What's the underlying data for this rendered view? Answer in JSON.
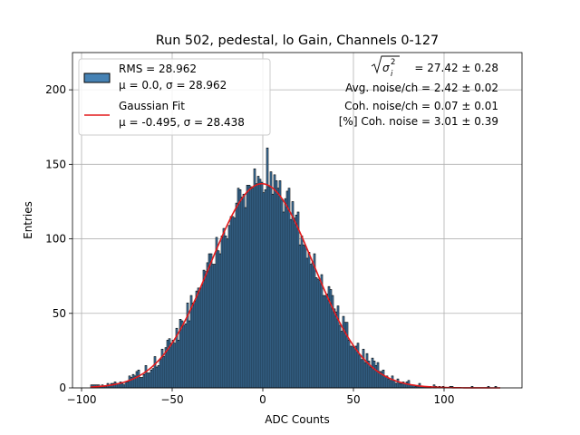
{
  "chart_data": {
    "type": "bar",
    "title": "Run 502, pedestal, lo Gain, Channels 0-127",
    "xlabel": "ADC Counts",
    "ylabel": "Entries",
    "xlim": [
      -105,
      143
    ],
    "ylim": [
      0,
      225
    ],
    "xticks": [
      -100,
      -50,
      0,
      50,
      100
    ],
    "xtick_labels": [
      "−100",
      "−50",
      "0",
      "50",
      "100"
    ],
    "yticks": [
      0,
      50,
      100,
      150,
      200
    ],
    "ytick_labels": [
      "0",
      "50",
      "100",
      "150",
      "200"
    ],
    "grid": true,
    "legend_position": "upper left",
    "colors": {
      "histogram": "#4682b4",
      "edge": "#000000",
      "fit": "#e41a1c"
    },
    "series": [
      {
        "name": "RMS = 28.962",
        "name_line2": "μ = 0.0, σ = 28.962",
        "kind": "histogram",
        "bin_width": 1,
        "mean": 0.0,
        "sigma": 28.962,
        "peak": 161,
        "range": [
          -95,
          131
        ]
      },
      {
        "name": "Gaussian Fit",
        "name_line2": "μ = -0.495, σ = 28.438",
        "kind": "fit",
        "mu": -0.495,
        "sigma": 28.438,
        "amplitude": 137
      }
    ],
    "annotations": [
      {
        "label_base": "σ",
        "label_sup": "2",
        "label_sub": "i",
        "value": "= 27.42 ± 0.28"
      },
      {
        "text": "Avg. noise/ch = 2.42 ± 0.02"
      },
      {
        "text": "Coh. noise/ch = 0.07 ± 0.01"
      },
      {
        "text": "[%] Coh. noise = 3.01 ± 0.39"
      }
    ]
  }
}
